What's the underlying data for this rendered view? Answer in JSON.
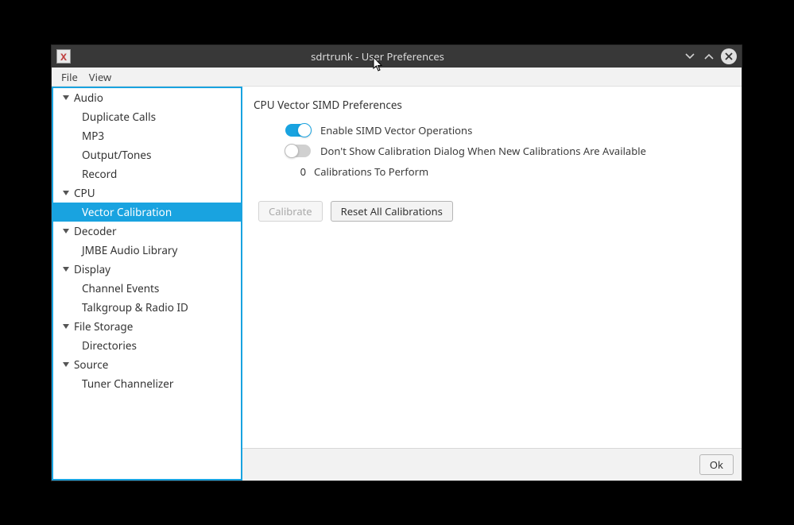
{
  "window": {
    "title": "sdrtrunk - User Preferences",
    "app_icon_letter": "X"
  },
  "menubar": {
    "file": "File",
    "view": "View"
  },
  "sidebar": {
    "groups": [
      {
        "label": "Audio",
        "children": [
          "Duplicate Calls",
          "MP3",
          "Output/Tones",
          "Record"
        ]
      },
      {
        "label": "CPU",
        "children": [
          "Vector Calibration"
        ]
      },
      {
        "label": "Decoder",
        "children": [
          "JMBE Audio Library"
        ]
      },
      {
        "label": "Display",
        "children": [
          "Channel Events",
          "Talkgroup & Radio ID"
        ]
      },
      {
        "label": "File Storage",
        "children": [
          "Directories"
        ]
      },
      {
        "label": "Source",
        "children": [
          "Tuner Channelizer"
        ]
      }
    ],
    "selected": "Vector Calibration"
  },
  "main": {
    "section_title": "CPU Vector SIMD Preferences",
    "options": {
      "enable_simd": {
        "label": "Enable SIMD Vector Operations",
        "on": true
      },
      "dont_show_dialog": {
        "label": "Don't Show Calibration Dialog When New Calibrations Are Available",
        "on": false
      }
    },
    "calibrations_count": "0",
    "calibrations_label": "Calibrations To Perform",
    "calibrate_btn": "Calibrate",
    "reset_btn": "Reset All Calibrations"
  },
  "footer": {
    "ok_btn": "Ok"
  },
  "colors": {
    "accent": "#19a3e0",
    "background_black": "#000000",
    "window_bg": "#f2f2f2",
    "titlebar_bg": "#383838",
    "text": "#333333"
  }
}
